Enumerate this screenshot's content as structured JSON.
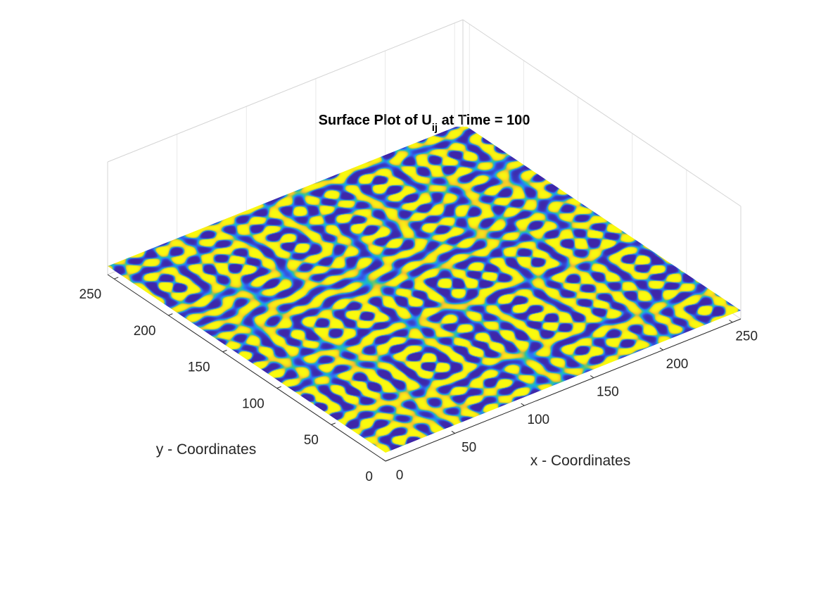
{
  "chart_data": {
    "type": "surface",
    "title": {
      "prefix": "Surface Plot of U",
      "subscript": "ij",
      "suffix": " at Time = 100"
    },
    "xlabel": "x - Coordinates",
    "ylabel": "y - Coordinates",
    "xlim": [
      0,
      256
    ],
    "ylim": [
      0,
      256
    ],
    "xticks": [
      0,
      50,
      100,
      150,
      200,
      250
    ],
    "yticks": [
      0,
      50,
      100,
      150,
      200,
      250
    ],
    "view": "3-D view, x axis toward lower right, y axis toward lower left",
    "pattern": "labyrinthine stripes (Turing pattern), wavelength about 12 grid units",
    "colormap": [
      "#3e26a8",
      "#2f6ef6",
      "#18b3d6",
      "#3dc488",
      "#f5c22d",
      "#f9fb0e"
    ],
    "box": true,
    "grid": false
  }
}
